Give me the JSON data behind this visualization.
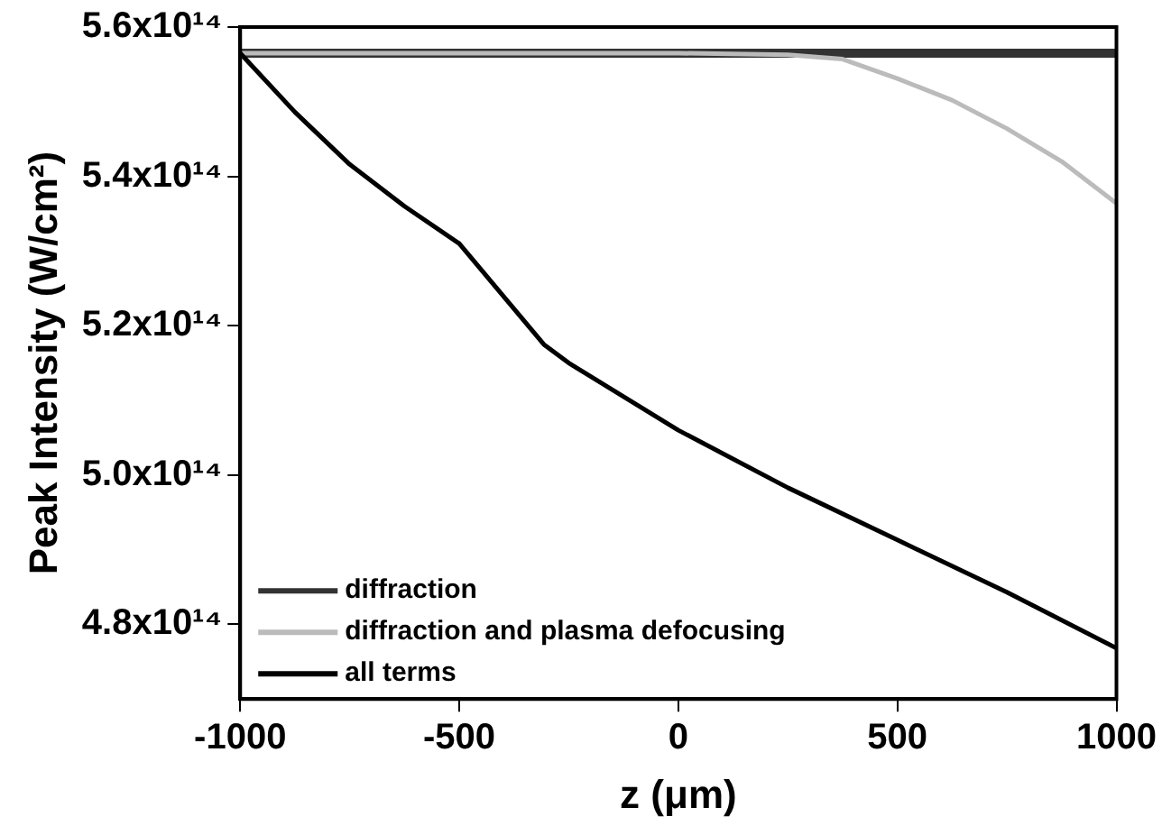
{
  "chart_data": {
    "type": "line",
    "xlabel": "z (μm)",
    "ylabel": "Peak Intensity (W/cm²)",
    "xlim": [
      -1000,
      1000
    ],
    "xticks": [
      -1000,
      -500,
      0,
      500,
      1000
    ],
    "ylim": [
      470000000000000.0,
      560000000000000.0
    ],
    "yticks": [
      {
        "value": 480000000000000.0,
        "label": "4.8x10¹⁴"
      },
      {
        "value": 500000000000000.0,
        "label": "5.0x10¹⁴"
      },
      {
        "value": 520000000000000.0,
        "label": "5.2x10¹⁴"
      },
      {
        "value": 540000000000000.0,
        "label": "5.4x10¹⁴"
      },
      {
        "value": 560000000000000.0,
        "label": "5.6x10¹⁴"
      }
    ],
    "grid": false,
    "legend": "bottom left",
    "marker": "none",
    "line_style": "solid",
    "series": [
      {
        "name": "diffraction",
        "color": "#333333",
        "x": [
          -1000,
          -500,
          0,
          500,
          1000
        ],
        "values": [
          556500000000000.0,
          556500000000000.0,
          556500000000000.0,
          556500000000000.0,
          556500000000000.0
        ]
      },
      {
        "name": "diffraction and plasma defocusing",
        "color": "#bbbbbb",
        "x": [
          -1000,
          -500,
          0,
          250,
          375,
          500,
          625,
          750,
          875,
          1000
        ],
        "values": [
          556500000000000.0,
          556500000000000.0,
          556500000000000.0,
          556300000000000.0,
          555700000000000.0,
          553100000000000.0,
          550200000000000.0,
          546400000000000.0,
          542000000000000.0,
          536400000000000.0
        ]
      },
      {
        "name": "all terms",
        "color": "#000000",
        "x": [
          -1000,
          -875,
          -750,
          -625,
          -500,
          -307,
          -250,
          0,
          250,
          500,
          750,
          1000
        ],
        "values": [
          556500000000000.0,
          548600000000000.0,
          541600000000000.0,
          536000000000000.0,
          531000000000000.0,
          517500000000000.0,
          515000000000000.0,
          506000000000000.0,
          498300000000000.0,
          491300000000000.0,
          484300000000000.0,
          476800000000000.0
        ]
      }
    ]
  }
}
